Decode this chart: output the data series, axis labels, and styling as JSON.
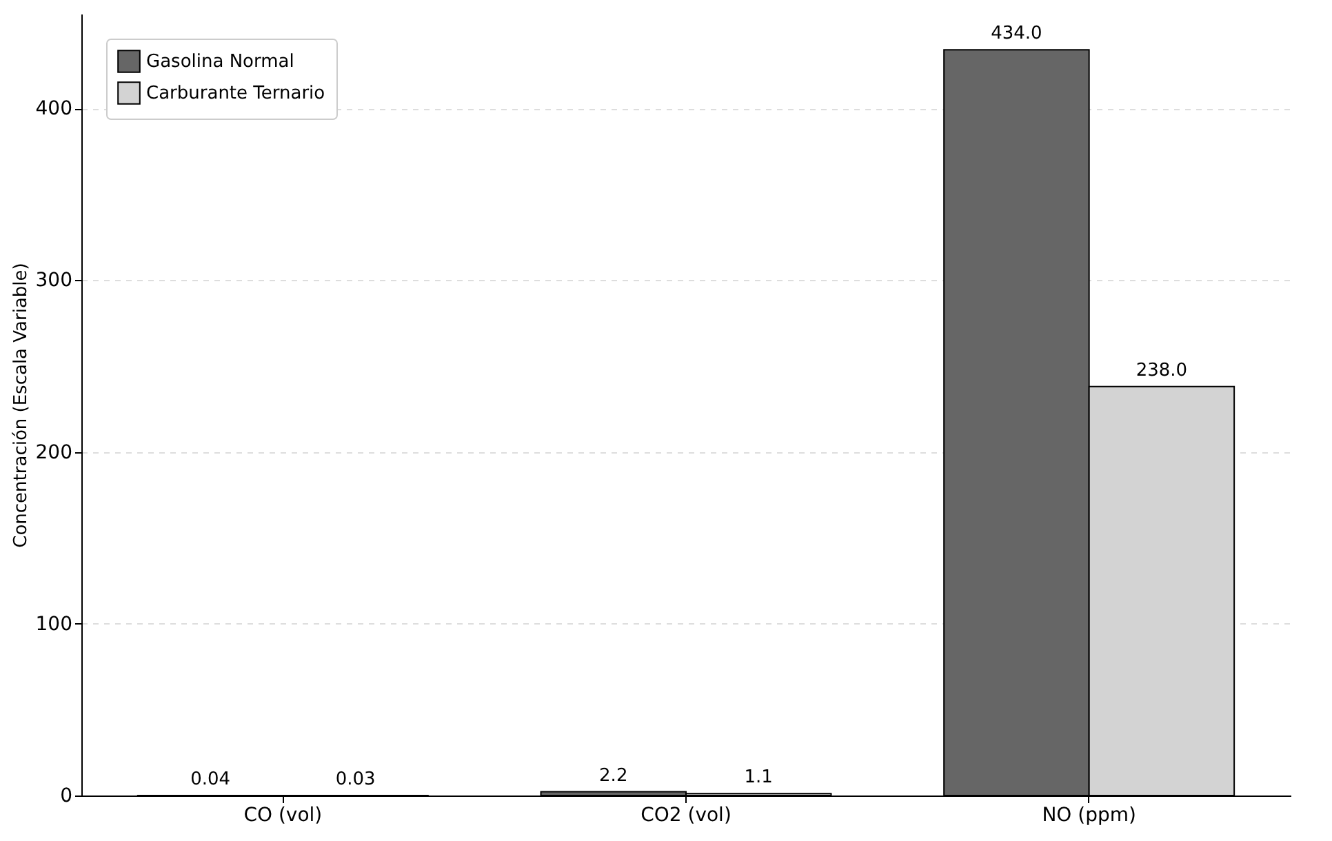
{
  "chart_data": {
    "type": "bar",
    "ylabel": "Concentración (Escala Variable)",
    "categories": [
      "CO (vol)",
      "CO2 (vol)",
      "NO (ppm)"
    ],
    "series": [
      {
        "name": "Gasolina Normal",
        "color": "#666666",
        "values": [
          0.04,
          2.2,
          434.0
        ],
        "value_labels": [
          "0.04",
          "2.2",
          "434.0"
        ]
      },
      {
        "name": "Carburante Ternario",
        "color": "#d3d3d3",
        "values": [
          0.03,
          1.1,
          238.0
        ],
        "value_labels": [
          "0.03",
          "1.1",
          "238.0"
        ]
      }
    ],
    "ylim": [
      0,
      455
    ],
    "yticks": [
      0,
      100,
      200,
      300,
      400
    ],
    "grid": "y",
    "legend": "top left"
  }
}
